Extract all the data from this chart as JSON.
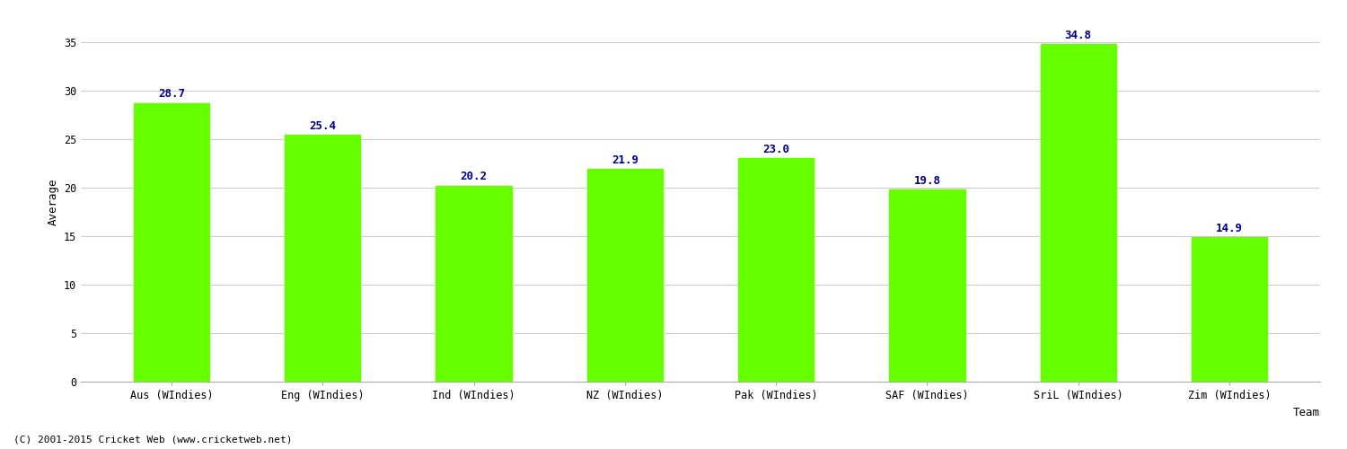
{
  "categories": [
    "Aus (WIndies)",
    "Eng (WIndies)",
    "Ind (WIndies)",
    "NZ (WIndies)",
    "Pak (WIndies)",
    "SAF (WIndies)",
    "SriL (WIndies)",
    "Zim (WIndies)"
  ],
  "values": [
    28.7,
    25.4,
    20.2,
    21.9,
    23.0,
    19.8,
    34.8,
    14.9
  ],
  "bar_color": "#66ff00",
  "bar_edge_color": "#66ff00",
  "label_color": "#00008B",
  "xlabel": "Team",
  "ylabel": "Average",
  "ylim": [
    0,
    37
  ],
  "yticks": [
    0,
    5,
    10,
    15,
    20,
    25,
    30,
    35
  ],
  "background_color": "#ffffff",
  "grid_color": "#cccccc",
  "label_fontsize": 9,
  "axis_label_fontsize": 9,
  "tick_fontsize": 8.5,
  "bar_width": 0.5,
  "footer": "(C) 2001-2015 Cricket Web (www.cricketweb.net)"
}
